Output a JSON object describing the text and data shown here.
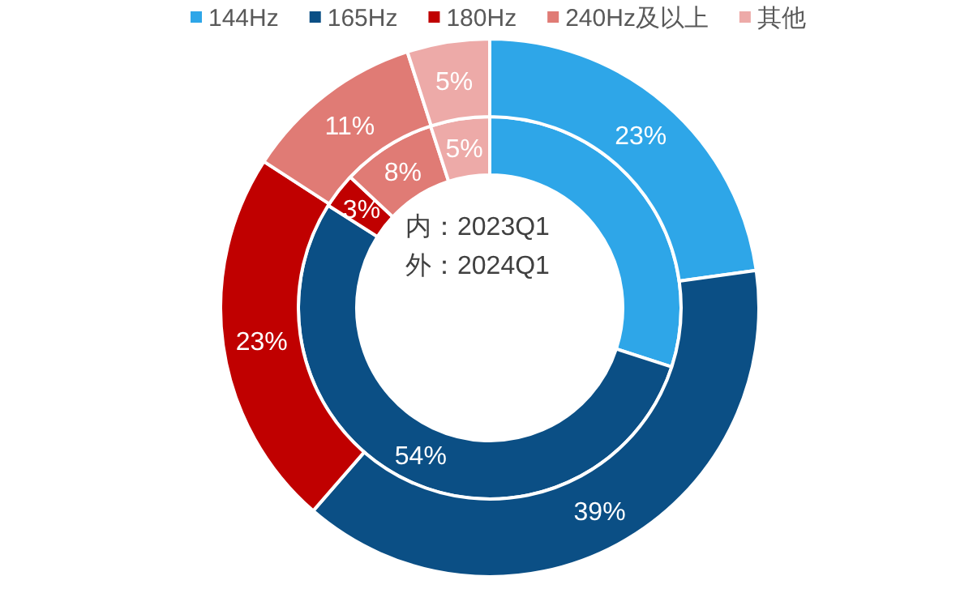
{
  "chart_data": {
    "type": "donut",
    "categories": [
      "144Hz",
      "165Hz",
      "180Hz",
      "240Hz及以上",
      "其他"
    ],
    "colors": [
      "#2ea6e8",
      "#0b4f85",
      "#c00000",
      "#e07b75",
      "#edaaa8"
    ],
    "series": [
      {
        "values": [
          30,
          54,
          3,
          8,
          5
        ],
        "value_labels": [
          null,
          "54%",
          "3%",
          "8%",
          "5%"
        ]
      },
      {
        "values": [
          23,
          39,
          23,
          11,
          5
        ],
        "value_labels": [
          "23%",
          "39%",
          "23%",
          "11%",
          "5%"
        ]
      }
    ],
    "legend": "top",
    "annotations": [
      "内：2023Q1",
      "外：2024Q1"
    ]
  }
}
